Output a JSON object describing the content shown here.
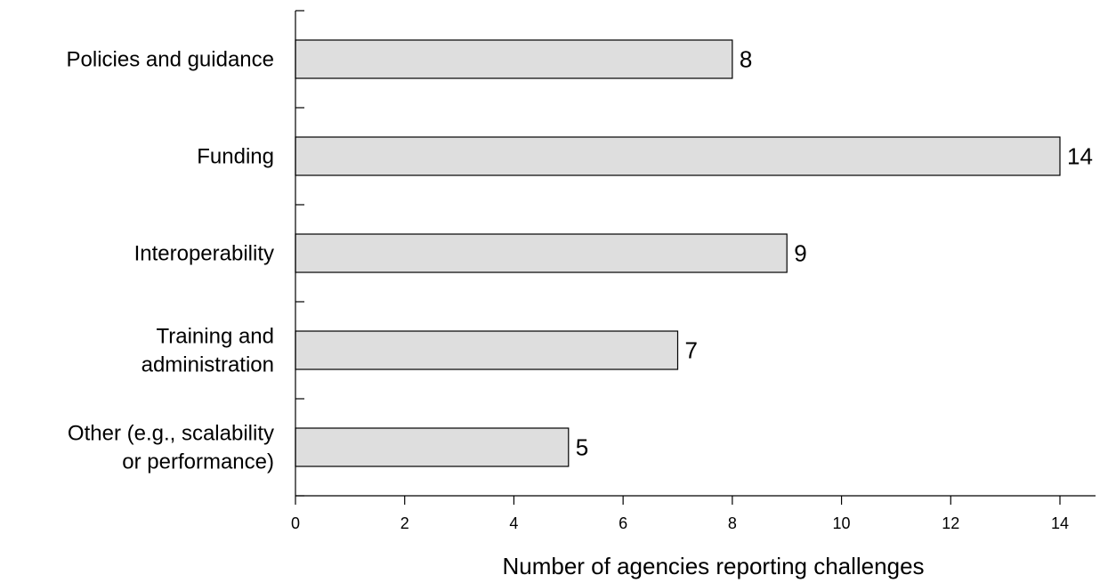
{
  "chart_data": {
    "type": "bar",
    "orientation": "horizontal",
    "categories": [
      [
        "Policies and guidance"
      ],
      [
        "Funding"
      ],
      [
        "Interoperability"
      ],
      [
        "Training and",
        "administration"
      ],
      [
        "Other (e.g., scalability",
        "or performance)"
      ]
    ],
    "values": [
      8,
      14,
      9,
      7,
      5
    ],
    "data_labels": [
      "8",
      "14",
      "9",
      "7",
      "5"
    ],
    "title": "",
    "xlabel": "Number of agencies reporting challenges",
    "ylabel": "",
    "xlim": [
      0,
      14
    ],
    "xticks": [
      0,
      2,
      4,
      6,
      8,
      10,
      12,
      14
    ],
    "grid": false,
    "legend": "none",
    "bar_fill": "#dedede",
    "bar_stroke": "#000000"
  }
}
